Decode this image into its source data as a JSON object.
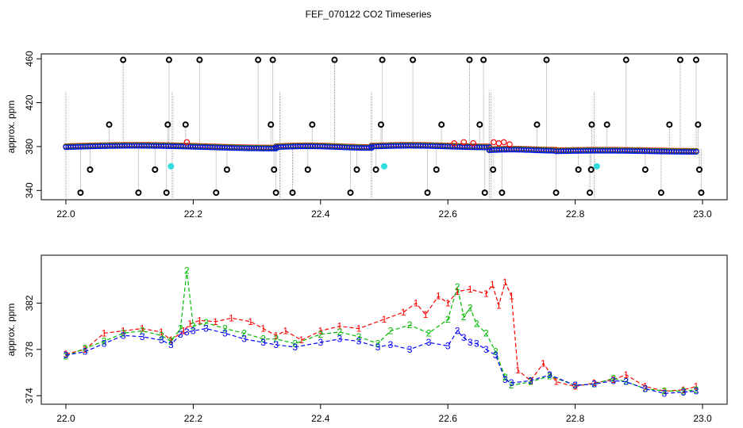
{
  "figure_title": "FEF_070122  CO2 Timeseries",
  "colors": {
    "series1": "#ff0000",
    "series2": "#00bb00",
    "series3": "#0000ff",
    "flagged": "#000000",
    "special": "#33dddd",
    "stem": "#999999"
  },
  "chart_data": [
    {
      "type": "scatter",
      "title": "",
      "xlabel": "",
      "ylabel": "approx. ppm",
      "xlim": [
        22.0,
        23.0
      ],
      "ylim": [
        333,
        463
      ],
      "x_ticks": [
        "22.0",
        "22.2",
        "22.4",
        "22.6",
        "22.8",
        "23.0"
      ],
      "y_ticks": [
        "340",
        "380",
        "420",
        "460"
      ],
      "grid": false,
      "baseline_segments": [
        {
          "x": [
            22.0,
            22.33
          ],
          "y": [
            378.5,
            381.0
          ]
        },
        {
          "x": [
            22.33,
            22.48
          ],
          "y": [
            379.0,
            380.5
          ]
        },
        {
          "x": [
            22.48,
            22.665
          ],
          "y": [
            379.5,
            381.0
          ]
        },
        {
          "x": [
            22.665,
            22.77
          ],
          "y": [
            376.5,
            377.5
          ]
        },
        {
          "x": [
            22.77,
            22.99
          ],
          "y": [
            375.5,
            376.5
          ]
        }
      ],
      "outliers_high": [
        {
          "x": 22.09,
          "y": 459
        },
        {
          "x": 22.162,
          "y": 459
        },
        {
          "x": 22.21,
          "y": 459
        },
        {
          "x": 22.302,
          "y": 459
        },
        {
          "x": 22.325,
          "y": 459
        },
        {
          "x": 22.422,
          "y": 459
        },
        {
          "x": 22.497,
          "y": 459
        },
        {
          "x": 22.545,
          "y": 459
        },
        {
          "x": 22.634,
          "y": 459
        },
        {
          "x": 22.656,
          "y": 459
        },
        {
          "x": 22.755,
          "y": 459
        },
        {
          "x": 22.88,
          "y": 459
        },
        {
          "x": 22.965,
          "y": 459
        },
        {
          "x": 22.99,
          "y": 459
        }
      ],
      "outliers_mid": [
        {
          "x": 22.068,
          "y": 400
        },
        {
          "x": 22.16,
          "y": 400
        },
        {
          "x": 22.188,
          "y": 400
        },
        {
          "x": 22.322,
          "y": 400
        },
        {
          "x": 22.387,
          "y": 400
        },
        {
          "x": 22.495,
          "y": 400
        },
        {
          "x": 22.59,
          "y": 400
        },
        {
          "x": 22.65,
          "y": 400
        },
        {
          "x": 22.74,
          "y": 400
        },
        {
          "x": 22.826,
          "y": 400
        },
        {
          "x": 22.85,
          "y": 400
        },
        {
          "x": 22.948,
          "y": 400
        },
        {
          "x": 22.993,
          "y": 400
        }
      ],
      "outliers_low": [
        {
          "x": 22.038,
          "y": 359
        },
        {
          "x": 22.14,
          "y": 359
        },
        {
          "x": 22.253,
          "y": 359
        },
        {
          "x": 22.327,
          "y": 359
        },
        {
          "x": 22.38,
          "y": 359
        },
        {
          "x": 22.457,
          "y": 359
        },
        {
          "x": 22.487,
          "y": 359
        },
        {
          "x": 22.582,
          "y": 359
        },
        {
          "x": 22.671,
          "y": 359
        },
        {
          "x": 22.805,
          "y": 359
        },
        {
          "x": 22.825,
          "y": 359
        },
        {
          "x": 22.91,
          "y": 359
        },
        {
          "x": 22.995,
          "y": 359
        }
      ],
      "outliers_bottom": [
        {
          "x": 22.023,
          "y": 338
        },
        {
          "x": 22.114,
          "y": 338
        },
        {
          "x": 22.158,
          "y": 338
        },
        {
          "x": 22.236,
          "y": 338
        },
        {
          "x": 22.33,
          "y": 338
        },
        {
          "x": 22.356,
          "y": 338
        },
        {
          "x": 22.447,
          "y": 338
        },
        {
          "x": 22.568,
          "y": 338
        },
        {
          "x": 22.658,
          "y": 338
        },
        {
          "x": 22.685,
          "y": 338
        },
        {
          "x": 22.77,
          "y": 338
        },
        {
          "x": 22.823,
          "y": 338
        },
        {
          "x": 22.935,
          "y": 338
        },
        {
          "x": 22.998,
          "y": 338
        }
      ],
      "special_points": [
        {
          "x": 22.165,
          "y": 362
        },
        {
          "x": 22.5,
          "y": 362
        },
        {
          "x": 22.834,
          "y": 362
        }
      ],
      "red_excursions": [
        {
          "x": 22.672,
          "y": 384
        },
        {
          "x": 22.68,
          "y": 383
        },
        {
          "x": 22.688,
          "y": 384
        },
        {
          "x": 22.697,
          "y": 382
        },
        {
          "x": 22.61,
          "y": 383
        },
        {
          "x": 22.625,
          "y": 384
        },
        {
          "x": 22.64,
          "y": 383
        },
        {
          "x": 22.19,
          "y": 384
        }
      ]
    },
    {
      "type": "line",
      "title": "",
      "xlabel": "",
      "ylabel": "approx. ppm",
      "xlim": [
        22.0,
        23.0
      ],
      "ylim": [
        373.4,
        386.0
      ],
      "x_ticks": [
        "22.0",
        "22.2",
        "22.4",
        "22.6",
        "22.8",
        "23.0"
      ],
      "y_ticks": [
        "374",
        "378",
        "382"
      ],
      "grid": false,
      "series": [
        {
          "name": "1",
          "marker": "1",
          "color": "#ff0000",
          "x": [
            22.0,
            22.03,
            22.06,
            22.09,
            22.12,
            22.15,
            22.165,
            22.185,
            22.195,
            22.21,
            22.235,
            22.26,
            22.29,
            22.31,
            22.33,
            22.345,
            22.37,
            22.4,
            22.43,
            22.46,
            22.5,
            22.53,
            22.55,
            22.565,
            22.585,
            22.6,
            22.615,
            22.635,
            22.66,
            22.67,
            22.68,
            22.69,
            22.7,
            22.71,
            22.73,
            22.75,
            22.77,
            22.8,
            22.83,
            22.86,
            22.88,
            22.91,
            22.94,
            22.97,
            22.99
          ],
          "y": [
            377.6,
            378.0,
            379.4,
            379.6,
            379.8,
            379.5,
            378.8,
            379.6,
            380.2,
            380.5,
            380.4,
            380.7,
            380.4,
            379.8,
            379.2,
            379.6,
            378.8,
            379.6,
            380.0,
            379.8,
            380.6,
            381.2,
            382.0,
            381.0,
            382.6,
            382.0,
            383.0,
            383.2,
            382.8,
            383.6,
            381.8,
            383.8,
            382.6,
            376.2,
            375.3,
            376.8,
            375.2,
            374.8,
            375.1,
            375.4,
            375.8,
            374.8,
            374.4,
            374.5,
            374.8
          ]
        },
        {
          "name": "2",
          "marker": "2",
          "color": "#00bb00",
          "x": [
            22.0,
            22.03,
            22.06,
            22.09,
            22.12,
            22.15,
            22.165,
            22.18,
            22.19,
            22.2,
            22.22,
            22.25,
            22.28,
            22.31,
            22.33,
            22.36,
            22.4,
            22.43,
            22.46,
            22.49,
            22.51,
            22.54,
            22.57,
            22.6,
            22.615,
            22.625,
            22.635,
            22.645,
            22.66,
            22.675,
            22.69,
            22.7,
            22.73,
            22.76,
            22.8,
            22.83,
            22.86,
            22.88,
            22.91,
            22.94,
            22.97,
            22.99
          ],
          "y": [
            377.4,
            378.1,
            378.7,
            379.4,
            379.6,
            379.2,
            378.7,
            379.8,
            384.8,
            380.0,
            380.3,
            379.8,
            379.4,
            378.9,
            378.9,
            378.5,
            379.3,
            379.5,
            379.1,
            378.5,
            379.6,
            380.1,
            379.4,
            380.6,
            383.4,
            380.8,
            381.6,
            380.2,
            379.4,
            377.8,
            375.6,
            374.9,
            375.2,
            375.7,
            374.9,
            375.0,
            375.5,
            375.2,
            374.6,
            374.4,
            374.4,
            374.5
          ]
        },
        {
          "name": "3",
          "marker": "3",
          "color": "#0000ff",
          "x": [
            22.0,
            22.03,
            22.06,
            22.09,
            22.12,
            22.15,
            22.165,
            22.18,
            22.19,
            22.2,
            22.22,
            22.25,
            22.28,
            22.31,
            22.33,
            22.36,
            22.4,
            22.43,
            22.46,
            22.49,
            22.51,
            22.54,
            22.57,
            22.6,
            22.615,
            22.625,
            22.635,
            22.645,
            22.66,
            22.675,
            22.69,
            22.7,
            22.73,
            22.76,
            22.8,
            22.83,
            22.86,
            22.88,
            22.91,
            22.94,
            22.97,
            22.99
          ],
          "y": [
            377.5,
            377.8,
            378.5,
            379.2,
            379.1,
            378.8,
            378.4,
            379.3,
            379.5,
            379.6,
            379.8,
            379.4,
            378.9,
            378.6,
            378.4,
            378.2,
            378.6,
            378.9,
            378.7,
            378.2,
            378.4,
            378.0,
            378.6,
            378.3,
            379.6,
            379.0,
            378.6,
            378.5,
            378.0,
            377.5,
            375.4,
            375.1,
            375.3,
            375.8,
            374.9,
            375.0,
            375.3,
            375.2,
            374.6,
            374.2,
            374.3,
            374.4
          ]
        }
      ]
    }
  ]
}
